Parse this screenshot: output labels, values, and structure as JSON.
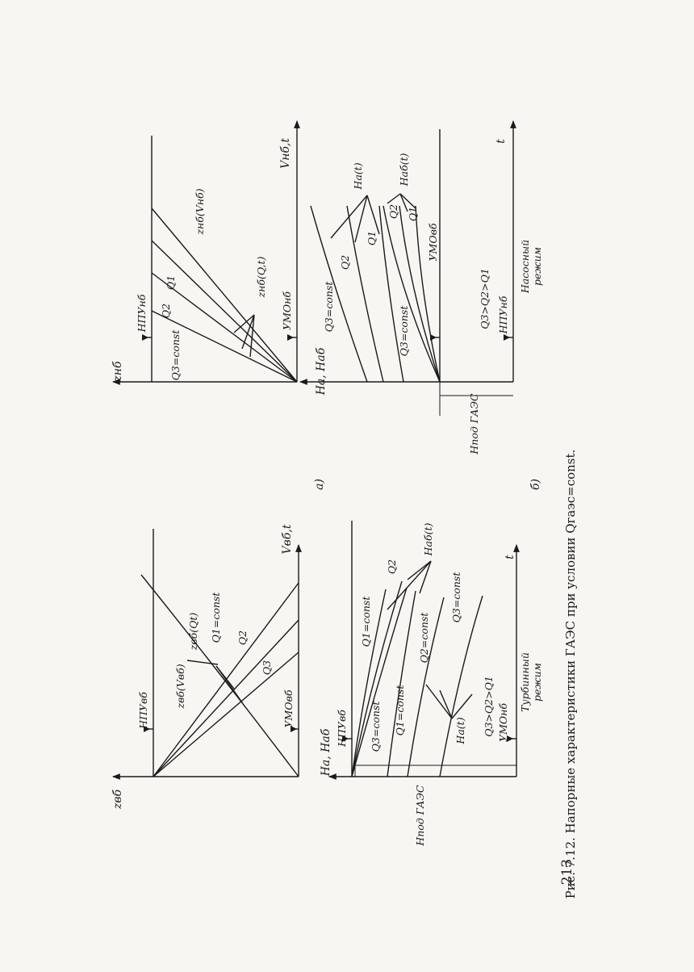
{
  "page_number": "213",
  "caption": "Рис. 7.12. Напорные характеристики ГАЭС при условии Qгаэс=const.",
  "sublabels": {
    "a": "а)",
    "b": "б)"
  },
  "panel_a_upper": {
    "axis_y": "zвб",
    "axis_x": "Vвб,t",
    "top_level": "НПУвб",
    "bottom_level": "УМОвб",
    "curve_volume": "zвб(Vвб)",
    "curve_time": "zвб(Qt)",
    "q1": "Q1=const",
    "q2": "Q2",
    "q3": "Q3"
  },
  "panel_a_lower": {
    "axis_y": "Hа, Hаб",
    "axis_x": "t",
    "top_level": "НПУвб",
    "bottom_level": "УМОнб",
    "h_ab": "Hаб(t)",
    "h_a": "Hа(t)",
    "q1_upper": "Q1=const",
    "q2_upper": "Q2",
    "q3_upper": "Q3=const",
    "q1_lower": "Q1=const",
    "q2_lower": "Q2=const",
    "q3_lower": "Q3=const",
    "ineq": "Q3>Q2>Q1",
    "mode": [
      "Турбинный",
      "режим"
    ],
    "hpod": "Hпод ГАЭС"
  },
  "panel_b_upper": {
    "axis_y": "zнб",
    "axis_x": "Vнб,t",
    "top_level": "НПУнб",
    "bottom_level": "УМОнб",
    "curve_volume": "zнб(Vнб)",
    "curve_time": "zнб(Q,t)",
    "q1": "Q1",
    "q2": "Q2",
    "q3": "Q3=const"
  },
  "panel_b_lower": {
    "axis_y": "Hа, Hаб",
    "axis_x": "t",
    "top_level": "УМОвб",
    "bottom_level": "НПУнб",
    "h_a": "Hа(t)",
    "h_ab": "Hаб(t)",
    "q3_upper": "Q3=const",
    "q2_upper": "Q2",
    "q1_upper": "Q1",
    "q3_lower": "Q3=const",
    "q2_lower": "Q2",
    "q1_lower": "Q1",
    "ineq": "Q3>Q2>Q1",
    "mode": [
      "Насосный",
      "режим"
    ],
    "hpod": "Hпод ГАЭС"
  }
}
